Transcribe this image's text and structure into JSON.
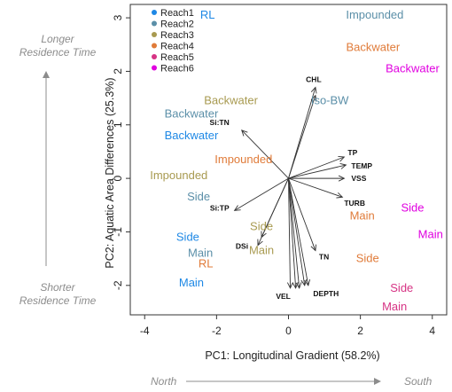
{
  "chart_data": {
    "type": "scatter",
    "xlabel": "PC1: Longitudinal Gradient (58.2%)",
    "ylabel": "PC2: Aquatic Area Differences (25.3%)",
    "xlim": [
      -4.4,
      4.4
    ],
    "ylim": [
      -2.55,
      3.25
    ],
    "x_ticks": [
      -4,
      -2,
      0,
      2,
      4
    ],
    "y_ticks": [
      -2,
      -1,
      0,
      1,
      2,
      3
    ],
    "x_direction": {
      "left": "North",
      "right": "South"
    },
    "y_direction": {
      "top": "Longer\nResidence Time",
      "bottom": "Shorter\nResidence Time"
    },
    "legend": {
      "placement": "top-left",
      "items": [
        {
          "name": "Reach1",
          "color": "#1e88e5"
        },
        {
          "name": "Reach2",
          "color": "#5b8fa8"
        },
        {
          "name": "Reach3",
          "color": "#a89a50"
        },
        {
          "name": "Reach4",
          "color": "#e07b39"
        },
        {
          "name": "Reach5",
          "color": "#d63384"
        },
        {
          "name": "Reach6",
          "color": "#e000e0"
        }
      ]
    },
    "site_labels": [
      {
        "label": "RL",
        "reach": "Reach1",
        "x": -2.25,
        "y": 3.05
      },
      {
        "label": "Backwater",
        "reach": "Reach1",
        "x": -2.7,
        "y": 0.8
      },
      {
        "label": "Side",
        "reach": "Reach1",
        "x": -2.8,
        "y": -1.1
      },
      {
        "label": "Main",
        "reach": "Reach1",
        "x": -2.7,
        "y": -1.95
      },
      {
        "label": "Impounded",
        "reach": "Reach2",
        "x": 2.4,
        "y": 3.05
      },
      {
        "label": "Iso-BW",
        "reach": "Reach2",
        "x": 1.15,
        "y": 1.45
      },
      {
        "label": "Backwater",
        "reach": "Reach2",
        "x": -2.7,
        "y": 1.2
      },
      {
        "label": "Side",
        "reach": "Reach2",
        "x": -2.5,
        "y": -0.35
      },
      {
        "label": "Main",
        "reach": "Reach2",
        "x": -2.45,
        "y": -1.4
      },
      {
        "label": "Backwater",
        "reach": "Reach3",
        "x": -1.6,
        "y": 1.45
      },
      {
        "label": "Impounded",
        "reach": "Reach3",
        "x": -3.05,
        "y": 0.05
      },
      {
        "label": "Side",
        "reach": "Reach3",
        "x": -0.75,
        "y": -0.9
      },
      {
        "label": "Main",
        "reach": "Reach3",
        "x": -0.75,
        "y": -1.35
      },
      {
        "label": "Backwater",
        "reach": "Reach4",
        "x": 2.35,
        "y": 2.45
      },
      {
        "label": "Impounded",
        "reach": "Reach4",
        "x": -1.25,
        "y": 0.35
      },
      {
        "label": "RL",
        "reach": "Reach4",
        "x": -2.3,
        "y": -1.6
      },
      {
        "label": "Main",
        "reach": "Reach4",
        "x": 2.05,
        "y": -0.7
      },
      {
        "label": "Side",
        "reach": "Reach4",
        "x": 2.2,
        "y": -1.5
      },
      {
        "label": "Side",
        "reach": "Reach5",
        "x": 3.15,
        "y": -2.05
      },
      {
        "label": "Main",
        "reach": "Reach5",
        "x": 2.95,
        "y": -2.4
      },
      {
        "label": "Backwater",
        "reach": "Reach6",
        "x": 3.45,
        "y": 2.05
      },
      {
        "label": "Side",
        "reach": "Reach6",
        "x": 3.45,
        "y": -0.55
      },
      {
        "label": "Main",
        "reach": "Reach6",
        "x": 3.95,
        "y": -1.05
      }
    ],
    "loading_vectors": [
      {
        "name": "CHL",
        "x": 0.75,
        "y": 1.7
      },
      {
        "name": "Si:TN",
        "x": -1.3,
        "y": 0.9
      },
      {
        "name": "TP",
        "x": 1.55,
        "y": 0.4
      },
      {
        "name": "TEMP",
        "x": 1.6,
        "y": 0.25
      },
      {
        "name": "VSS",
        "x": 1.55,
        "y": 0.0
      },
      {
        "name": "TURB",
        "x": 1.5,
        "y": -0.35
      },
      {
        "name": "Si:TP",
        "x": -1.5,
        "y": -0.6
      },
      {
        "name": "DSi",
        "x": -0.85,
        "y": -1.25
      },
      {
        "name": "TN",
        "x": 0.75,
        "y": -1.35
      },
      {
        "name": "VEL",
        "x": 0.2,
        "y": -2.05
      },
      {
        "name": "DEPTH",
        "x": 0.55,
        "y": -2.0
      }
    ],
    "extra_vector_tips": [
      {
        "x": 0.05,
        "y": -2.05
      },
      {
        "x": 0.3,
        "y": -2.05
      },
      {
        "x": 0.45,
        "y": -2.0
      },
      {
        "x": -0.75,
        "y": -1.1
      },
      {
        "x": 0.75,
        "y": 1.55
      }
    ]
  }
}
